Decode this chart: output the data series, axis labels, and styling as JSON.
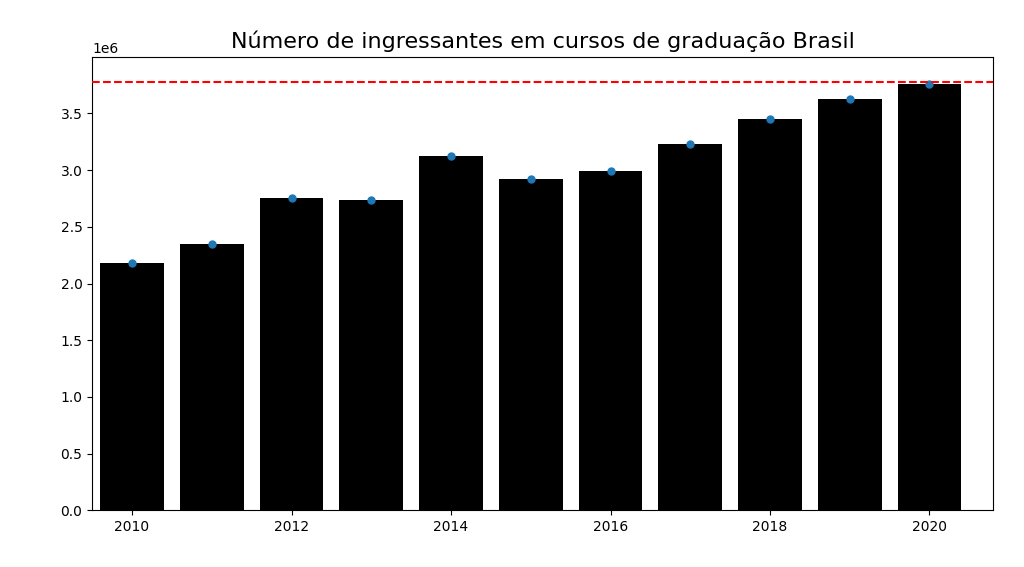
{
  "years": [
    2010,
    2011,
    2012,
    2013,
    2014,
    2015,
    2016,
    2017,
    2018,
    2019,
    2020
  ],
  "values": [
    2180000,
    2350000,
    2750000,
    2740000,
    3120000,
    2920000,
    2990000,
    3230000,
    3450000,
    3630000,
    3760000
  ],
  "bar_color": "#000000",
  "dot_color": "#1f77b4",
  "hline_value": 3780000,
  "hline_color": "#ff0000",
  "title": "Número de ingressantes em cursos de graduação Brasil",
  "title_fontsize": 16,
  "ylim": [
    0,
    4000000
  ],
  "yticks": [
    0,
    500000,
    1000000,
    1500000,
    2000000,
    2500000,
    3000000,
    3500000
  ],
  "xticks": [
    2010,
    2012,
    2014,
    2016,
    2018,
    2020
  ],
  "bar_width": 0.8,
  "background_color": "#ffffff"
}
